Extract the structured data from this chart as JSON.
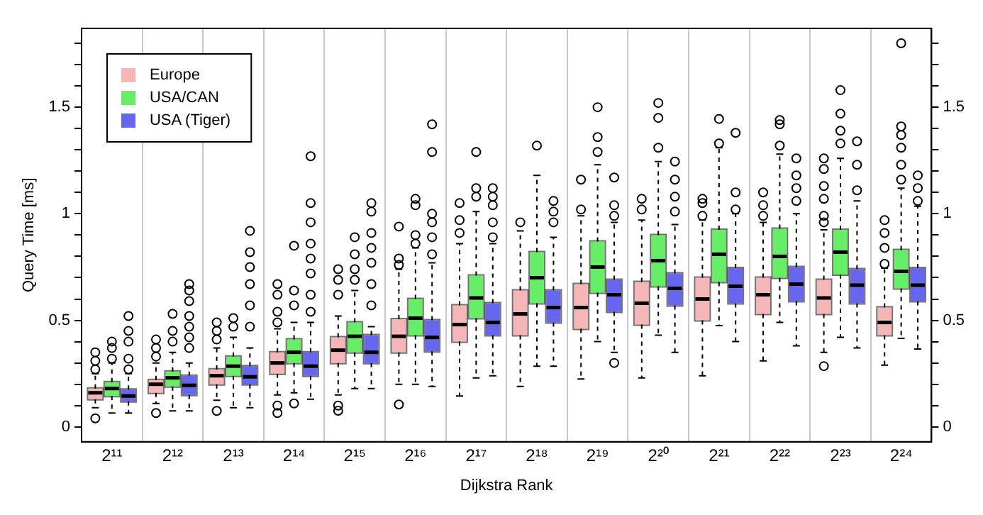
{
  "chart_data": {
    "type": "box",
    "xlabel": "Dijkstra Rank",
    "ylabel": "Query Time [ms]",
    "categories": [
      "2¹¹",
      "2¹²",
      "2¹³",
      "2¹⁴",
      "2¹⁵",
      "2¹⁶",
      "2¹⁷",
      "2¹⁸",
      "2¹⁹",
      "2²⁰",
      "2²¹",
      "2²²",
      "2²³",
      "2²⁴"
    ],
    "series": [
      {
        "name": "Europe",
        "color": "#f4b6b6",
        "boxes": [
          {
            "low": 0.09,
            "q1": 0.13,
            "median": 0.16,
            "q3": 0.18,
            "high": 0.25,
            "outliers": [
              0.35,
              0.31,
              0.27,
              0.04
            ]
          },
          {
            "low": 0.11,
            "q1": 0.16,
            "median": 0.2,
            "q3": 0.22,
            "high": 0.3,
            "outliers": [
              0.41,
              0.37,
              0.33,
              0.065
            ]
          },
          {
            "low": 0.125,
            "q1": 0.2,
            "median": 0.24,
            "q3": 0.27,
            "high": 0.37,
            "outliers": [
              0.49,
              0.45,
              0.41,
              0.075
            ]
          },
          {
            "low": 0.15,
            "q1": 0.25,
            "median": 0.3,
            "q3": 0.35,
            "high": 0.46,
            "outliers": [
              0.67,
              0.62,
              0.54,
              0.49,
              0.1,
              0.065
            ]
          },
          {
            "low": 0.15,
            "q1": 0.3,
            "median": 0.36,
            "q3": 0.42,
            "high": 0.52,
            "outliers": [
              0.74,
              0.69,
              0.62,
              0.1,
              0.076
            ]
          },
          {
            "low": 0.2,
            "q1": 0.35,
            "median": 0.425,
            "q3": 0.505,
            "high": 0.74,
            "outliers": [
              0.94,
              0.79,
              0.76,
              0.105
            ]
          },
          {
            "low": 0.145,
            "q1": 0.4,
            "median": 0.48,
            "q3": 0.57,
            "high": 0.86,
            "outliers": [
              1.05,
              0.97,
              0.91
            ]
          },
          {
            "low": 0.19,
            "q1": 0.43,
            "median": 0.53,
            "q3": 0.64,
            "high": 0.92,
            "outliers": [
              0.96
            ]
          },
          {
            "low": 0.225,
            "q1": 0.46,
            "median": 0.56,
            "q3": 0.67,
            "high": 0.99,
            "outliers": [
              1.16,
              1.02
            ]
          },
          {
            "low": 0.23,
            "q1": 0.48,
            "median": 0.58,
            "q3": 0.68,
            "high": 0.97,
            "outliers": [
              1.07,
              1.02
            ]
          },
          {
            "low": 0.24,
            "q1": 0.5,
            "median": 0.6,
            "q3": 0.7,
            "high": 0.97,
            "outliers": [
              1.07,
              1.05,
              0.99
            ]
          },
          {
            "low": 0.31,
            "q1": 0.53,
            "median": 0.62,
            "q3": 0.7,
            "high": 0.96,
            "outliers": [
              1.1,
              1.04,
              0.99
            ]
          },
          {
            "low": 0.35,
            "q1": 0.53,
            "median": 0.605,
            "q3": 0.69,
            "high": 0.925,
            "outliers": [
              1.26,
              1.21,
              1.13,
              1.07,
              0.99,
              0.96,
              0.285
            ]
          },
          {
            "low": 0.29,
            "q1": 0.43,
            "median": 0.49,
            "q3": 0.56,
            "high": 0.745,
            "outliers": [
              0.97,
              0.91,
              0.84,
              0.765
            ]
          }
        ]
      },
      {
        "name": "USA/CAN",
        "color": "#66ee66",
        "boxes": [
          {
            "low": 0.065,
            "q1": 0.145,
            "median": 0.18,
            "q3": 0.21,
            "high": 0.3,
            "outliers": [
              0.4,
              0.37,
              0.32
            ]
          },
          {
            "low": 0.075,
            "q1": 0.19,
            "median": 0.23,
            "q3": 0.26,
            "high": 0.35,
            "outliers": [
              0.53,
              0.45,
              0.4
            ]
          },
          {
            "low": 0.09,
            "q1": 0.24,
            "median": 0.285,
            "q3": 0.33,
            "high": 0.42,
            "outliers": [
              0.51,
              0.47
            ]
          },
          {
            "low": 0.16,
            "q1": 0.3,
            "median": 0.35,
            "q3": 0.41,
            "high": 0.49,
            "outliers": [
              0.85,
              0.64,
              0.57,
              0.11
            ]
          },
          {
            "low": 0.18,
            "q1": 0.35,
            "median": 0.425,
            "q3": 0.49,
            "high": 0.64,
            "outliers": [
              0.89,
              0.81,
              0.74,
              0.69
            ]
          },
          {
            "low": 0.2,
            "q1": 0.43,
            "median": 0.51,
            "q3": 0.6,
            "high": 0.84,
            "outliers": [
              1.07,
              1.04,
              0.9,
              0.86
            ]
          },
          {
            "low": 0.23,
            "q1": 0.51,
            "median": 0.605,
            "q3": 0.71,
            "high": 1.01,
            "outliers": [
              1.29,
              1.12,
              1.08
            ]
          },
          {
            "low": 0.285,
            "q1": 0.58,
            "median": 0.7,
            "q3": 0.82,
            "high": 1.18,
            "outliers": [
              1.32
            ]
          },
          {
            "low": 0.4,
            "q1": 0.63,
            "median": 0.75,
            "q3": 0.87,
            "high": 1.23,
            "outliers": [
              1.5,
              1.36,
              1.29
            ]
          },
          {
            "low": 0.43,
            "q1": 0.66,
            "median": 0.78,
            "q3": 0.9,
            "high": 1.245,
            "outliers": [
              1.52,
              1.45,
              1.31
            ]
          },
          {
            "low": 0.475,
            "q1": 0.68,
            "median": 0.81,
            "q3": 0.925,
            "high": 1.31,
            "outliers": [
              1.445,
              1.33
            ]
          },
          {
            "low": 0.49,
            "q1": 0.7,
            "median": 0.8,
            "q3": 0.93,
            "high": 1.28,
            "outliers": [
              1.44,
              1.42,
              1.32
            ]
          },
          {
            "low": 0.42,
            "q1": 0.715,
            "median": 0.82,
            "q3": 0.925,
            "high": 1.26,
            "outliers": [
              1.58,
              1.47,
              1.39,
              1.33
            ]
          },
          {
            "low": 0.415,
            "q1": 0.65,
            "median": 0.73,
            "q3": 0.83,
            "high": 1.12,
            "outliers": [
              1.8,
              1.41,
              1.37,
              1.31,
              1.23,
              1.16
            ]
          }
        ]
      },
      {
        "name": "USA (Tiger)",
        "color": "#6666ee",
        "boxes": [
          {
            "low": 0.065,
            "q1": 0.12,
            "median": 0.145,
            "q3": 0.175,
            "high": 0.25,
            "outliers": [
              0.52,
              0.45,
              0.4,
              0.32,
              0.27
            ]
          },
          {
            "low": 0.075,
            "q1": 0.15,
            "median": 0.195,
            "q3": 0.24,
            "high": 0.3,
            "outliers": [
              0.67,
              0.64,
              0.59,
              0.52,
              0.47,
              0.42,
              0.37
            ]
          },
          {
            "low": 0.09,
            "q1": 0.2,
            "median": 0.235,
            "q3": 0.285,
            "high": 0.37,
            "outliers": [
              0.92,
              0.82,
              0.75,
              0.67,
              0.57,
              0.47
            ]
          },
          {
            "low": 0.13,
            "q1": 0.24,
            "median": 0.285,
            "q3": 0.35,
            "high": 0.49,
            "outliers": [
              1.27,
              1.05,
              0.96,
              0.86,
              0.79,
              0.72,
              0.62,
              0.54
            ]
          },
          {
            "low": 0.18,
            "q1": 0.3,
            "median": 0.35,
            "q3": 0.43,
            "high": 0.47,
            "outliers": [
              1.05,
              1.01,
              0.91,
              0.84,
              0.77,
              0.67,
              0.57
            ]
          },
          {
            "low": 0.19,
            "q1": 0.355,
            "median": 0.42,
            "q3": 0.5,
            "high": 0.77,
            "outliers": [
              1.42,
              1.29,
              1.0,
              0.96,
              0.89,
              0.81
            ]
          },
          {
            "low": 0.24,
            "q1": 0.43,
            "median": 0.49,
            "q3": 0.58,
            "high": 0.86,
            "outliers": [
              1.12,
              1.08,
              1.04,
              0.96,
              0.89
            ]
          },
          {
            "low": 0.285,
            "q1": 0.49,
            "median": 0.56,
            "q3": 0.64,
            "high": 0.89,
            "outliers": [
              1.06,
              1.01,
              0.96
            ]
          },
          {
            "low": 0.35,
            "q1": 0.54,
            "median": 0.62,
            "q3": 0.69,
            "high": 0.96,
            "outliers": [
              1.17,
              1.04,
              0.99,
              0.3
            ]
          },
          {
            "low": 0.35,
            "q1": 0.57,
            "median": 0.65,
            "q3": 0.72,
            "high": 0.95,
            "outliers": [
              1.245,
              1.16,
              1.08,
              1.01
            ]
          },
          {
            "low": 0.4,
            "q1": 0.58,
            "median": 0.66,
            "q3": 0.745,
            "high": 1.0,
            "outliers": [
              1.38,
              1.1,
              1.02
            ]
          },
          {
            "low": 0.38,
            "q1": 0.59,
            "median": 0.67,
            "q3": 0.75,
            "high": 1.0,
            "outliers": [
              1.26,
              1.18,
              1.12,
              1.06
            ]
          },
          {
            "low": 0.37,
            "q1": 0.58,
            "median": 0.665,
            "q3": 0.74,
            "high": 1.06,
            "outliers": [
              1.34,
              1.23,
              1.11
            ]
          },
          {
            "low": 0.365,
            "q1": 0.59,
            "median": 0.665,
            "q3": 0.745,
            "high": 1.035,
            "outliers": [
              1.18,
              1.12,
              1.06
            ]
          }
        ]
      }
    ],
    "ylim": [
      -0.07,
      1.87
    ],
    "yticks": [
      0,
      {
        "value": 0.1,
        "label": null
      },
      {
        "value": 0.2,
        "label": null
      },
      {
        "value": 0.3,
        "label": null
      },
      {
        "value": 0.4,
        "label": null
      },
      0.5,
      {
        "value": 0.6,
        "label": null
      },
      {
        "value": 0.7,
        "label": null
      },
      {
        "value": 0.8,
        "label": null
      },
      {
        "value": 0.9,
        "label": null
      },
      1,
      {
        "value": 1.1,
        "label": null
      },
      {
        "value": 1.2,
        "label": null
      },
      {
        "value": 1.3,
        "label": null
      },
      {
        "value": 1.4,
        "label": null
      },
      1.5,
      {
        "value": 1.6,
        "label": null
      },
      {
        "value": 1.7,
        "label": null
      },
      {
        "value": 1.8,
        "label": null
      }
    ],
    "y2lim": [
      -0.07,
      1.87
    ],
    "y2ticks": [
      0,
      {
        "value": 0.1,
        "label": null
      },
      {
        "value": 0.2,
        "label": null
      },
      {
        "value": 0.3,
        "label": null
      },
      {
        "value": 0.4,
        "label": null
      },
      0.5,
      {
        "value": 0.6,
        "label": null
      },
      {
        "value": 0.7,
        "label": null
      },
      {
        "value": 0.8,
        "label": null
      },
      {
        "value": 0.9,
        "label": null
      },
      1,
      {
        "value": 1.1,
        "label": null
      },
      {
        "value": 1.2,
        "label": null
      },
      {
        "value": 1.3,
        "label": null
      },
      {
        "value": 1.4,
        "label": null
      },
      1.5,
      {
        "value": 1.6,
        "label": null
      },
      {
        "value": 1.7,
        "label": null
      },
      {
        "value": 1.8,
        "label": null
      }
    ],
    "grid": "x",
    "legend": "top left"
  }
}
